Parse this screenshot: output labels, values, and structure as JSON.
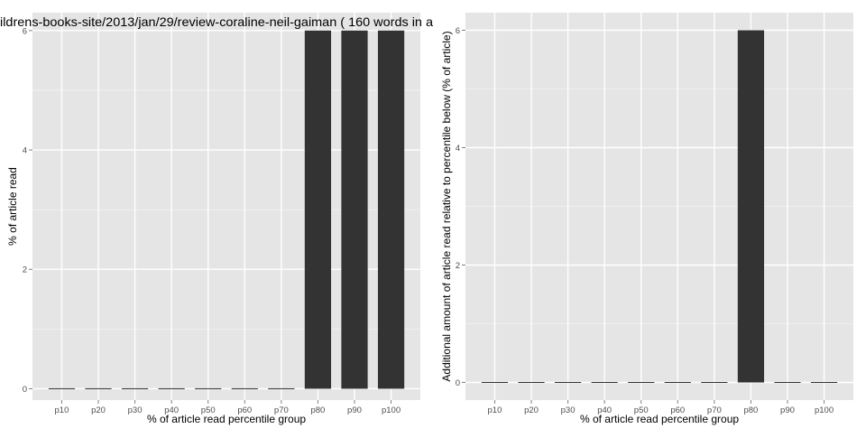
{
  "chart_data": [
    {
      "type": "bar",
      "title": "ildrens-books-site/2013/jan/29/review-coraline-neil-gaiman ( 160 words in a",
      "xlabel": "% of article read percentile group",
      "ylabel": "% of article read",
      "categories": [
        "p10",
        "p20",
        "p30",
        "p40",
        "p50",
        "p60",
        "p70",
        "p80",
        "p90",
        "p100"
      ],
      "values": [
        0,
        0,
        0,
        0,
        0,
        0,
        0,
        6,
        6,
        6
      ],
      "yticks": [
        0,
        2,
        4,
        6
      ],
      "ylim": [
        -0.19,
        6.3
      ],
      "grid": true,
      "colors": {
        "bar": "#333333",
        "panel": "#e5e5e5",
        "grid": "#ffffff",
        "text": "#000000",
        "tick": "#4d4d4d"
      }
    },
    {
      "type": "bar",
      "title": "",
      "xlabel": "% of article read percentile group",
      "ylabel": "Additional amount of article read relative to percentile below (% of article)",
      "categories": [
        "p10",
        "p20",
        "p30",
        "p40",
        "p50",
        "p60",
        "p70",
        "p80",
        "p90",
        "p100"
      ],
      "values": [
        0,
        0,
        0,
        0,
        0,
        0,
        0,
        6,
        0,
        0
      ],
      "yticks": [
        0,
        2,
        4,
        6
      ],
      "ylim": [
        -0.3,
        6.3
      ],
      "grid": true,
      "colors": {
        "bar": "#333333",
        "panel": "#e5e5e5",
        "grid": "#ffffff",
        "text": "#000000",
        "tick": "#4d4d4d"
      }
    }
  ]
}
